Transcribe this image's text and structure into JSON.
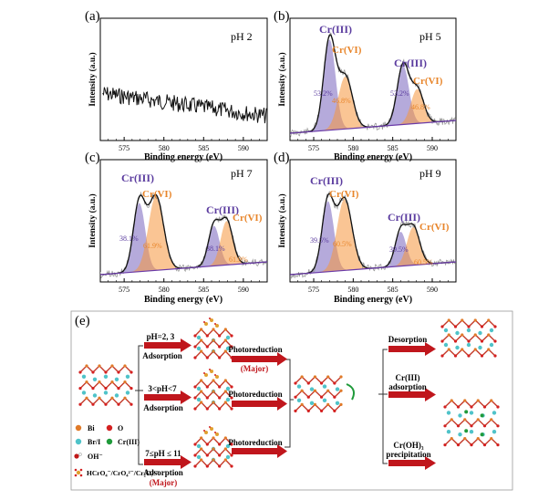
{
  "panels": [
    {
      "id": "a",
      "label": "(a)",
      "ph": "pH 2",
      "xlabel": "Binding energy (eV)",
      "ylabel": "Intensity (a.u.)",
      "ticks": [
        "575",
        "580",
        "585",
        "590"
      ],
      "peaks": [],
      "percents": []
    },
    {
      "id": "b",
      "label": "(b)",
      "ph": "pH 5",
      "xlabel": "Binding energy (eV)",
      "ylabel": "Intensity (a.u.)",
      "ticks": [
        "575",
        "580",
        "585",
        "590"
      ],
      "peaks": [
        {
          "text": "Cr(III)",
          "color": "#5b3c9f"
        },
        {
          "text": "Cr(VI)",
          "color": "#e8852a"
        },
        {
          "text": "Cr(III)",
          "color": "#5b3c9f"
        },
        {
          "text": "Cr(VI)",
          "color": "#e8852a"
        }
      ],
      "percents": [
        {
          "text": "53.2%",
          "color": "#5b3c9f"
        },
        {
          "text": "46.8%",
          "color": "#e8852a"
        },
        {
          "text": "53.2%",
          "color": "#5b3c9f"
        },
        {
          "text": "46.8%",
          "color": "#e8852a"
        }
      ]
    },
    {
      "id": "c",
      "label": "(c)",
      "ph": "pH 7",
      "xlabel": "Binding energy (eV)",
      "ylabel": "Intensity (a.u.)",
      "ticks": [
        "575",
        "580",
        "585",
        "590"
      ],
      "peaks": [
        {
          "text": "Cr(III)",
          "color": "#5b3c9f"
        },
        {
          "text": "Cr(VI)",
          "color": "#e8852a"
        },
        {
          "text": "Cr(III)",
          "color": "#5b3c9f"
        },
        {
          "text": "Cr(VI)",
          "color": "#e8852a"
        }
      ],
      "percents": [
        {
          "text": "38.1%",
          "color": "#5b3c9f"
        },
        {
          "text": "61.9%",
          "color": "#e8852a"
        },
        {
          "text": "38.1%",
          "color": "#5b3c9f"
        },
        {
          "text": "61.9%",
          "color": "#e8852a"
        }
      ]
    },
    {
      "id": "d",
      "label": "(d)",
      "ph": "pH 9",
      "xlabel": "Binding energy (eV)",
      "ylabel": "Intensity (a.u.)",
      "ticks": [
        "575",
        "580",
        "585",
        "590"
      ],
      "peaks": [
        {
          "text": "Cr(III)",
          "color": "#5b3c9f"
        },
        {
          "text": "Cr(VI)",
          "color": "#e8852a"
        },
        {
          "text": "Cr(III)",
          "color": "#5b3c9f"
        },
        {
          "text": "Cr(VI)",
          "color": "#e8852a"
        }
      ],
      "percents": [
        {
          "text": "39.5%",
          "color": "#5b3c9f"
        },
        {
          "text": "60.5%",
          "color": "#e8852a"
        },
        {
          "text": "39.5%",
          "color": "#5b3c9f"
        },
        {
          "text": "60.5%",
          "color": "#e8852a"
        }
      ]
    }
  ],
  "schematic": {
    "label": "(e)",
    "row1": {
      "condition": "pH=2, 3",
      "process": "Adsorption",
      "step": "Photoreduction",
      "tag": "(Major)"
    },
    "row2": {
      "condition": "3<pH<7",
      "process": "Adsorption",
      "step": "Photoreduction"
    },
    "row3": {
      "condition": "7≤pH ≤ 11",
      "process": "Adsorption",
      "tag": "(Major)",
      "step": "Photoreduction"
    },
    "right1": "Desorption",
    "right2a": "Cr(III)",
    "right2b": "adsorption",
    "right3a": "Cr(OH)₃",
    "right3b": "precipitation",
    "legend": [
      {
        "symbol": "Bi",
        "color": "#e07a28"
      },
      {
        "symbol": "O",
        "color": "#d42020"
      },
      {
        "symbol": "Br/I",
        "color": "#4fc3c9"
      },
      {
        "symbol": "Cr(III)",
        "color": "#1f9a3a"
      },
      {
        "symbol": "OH⁻",
        "color": "#c01818"
      },
      {
        "symbol": "HCrO₄⁻/CrO₄²⁻/Cr₂O₇²⁻",
        "color": "#e0a030"
      }
    ]
  },
  "colors": {
    "cr3": "#5b3c9f",
    "cr6": "#e8852a",
    "arrow": "#c0161c",
    "baseline": "#6a3aa8"
  }
}
